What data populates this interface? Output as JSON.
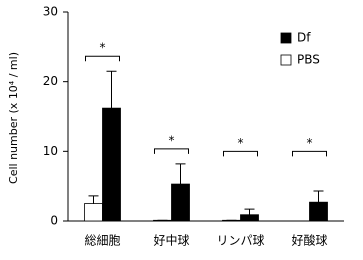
{
  "chart_data": {
    "type": "bar",
    "y_label": "Cell number (x 10⁴ / ml)",
    "categories": [
      "総細胞",
      "好中球",
      "リンパ球",
      "好酸球"
    ],
    "series": [
      {
        "name": "PBS",
        "color": "#ffffff",
        "values": [
          2.5,
          0.1,
          0.1,
          0
        ],
        "errors": [
          1.1,
          0,
          0,
          0
        ]
      },
      {
        "name": "Df",
        "color": "#000000",
        "values": [
          16.2,
          5.3,
          0.9,
          2.7
        ],
        "errors": [
          5.3,
          2.9,
          0.8,
          1.6
        ]
      }
    ],
    "annotations": [
      "*",
      "*",
      "*",
      "*"
    ],
    "ylim": [
      0,
      30
    ],
    "yticks": [
      0,
      10,
      20,
      30
    ],
    "grid": false,
    "legend": "top-right"
  }
}
